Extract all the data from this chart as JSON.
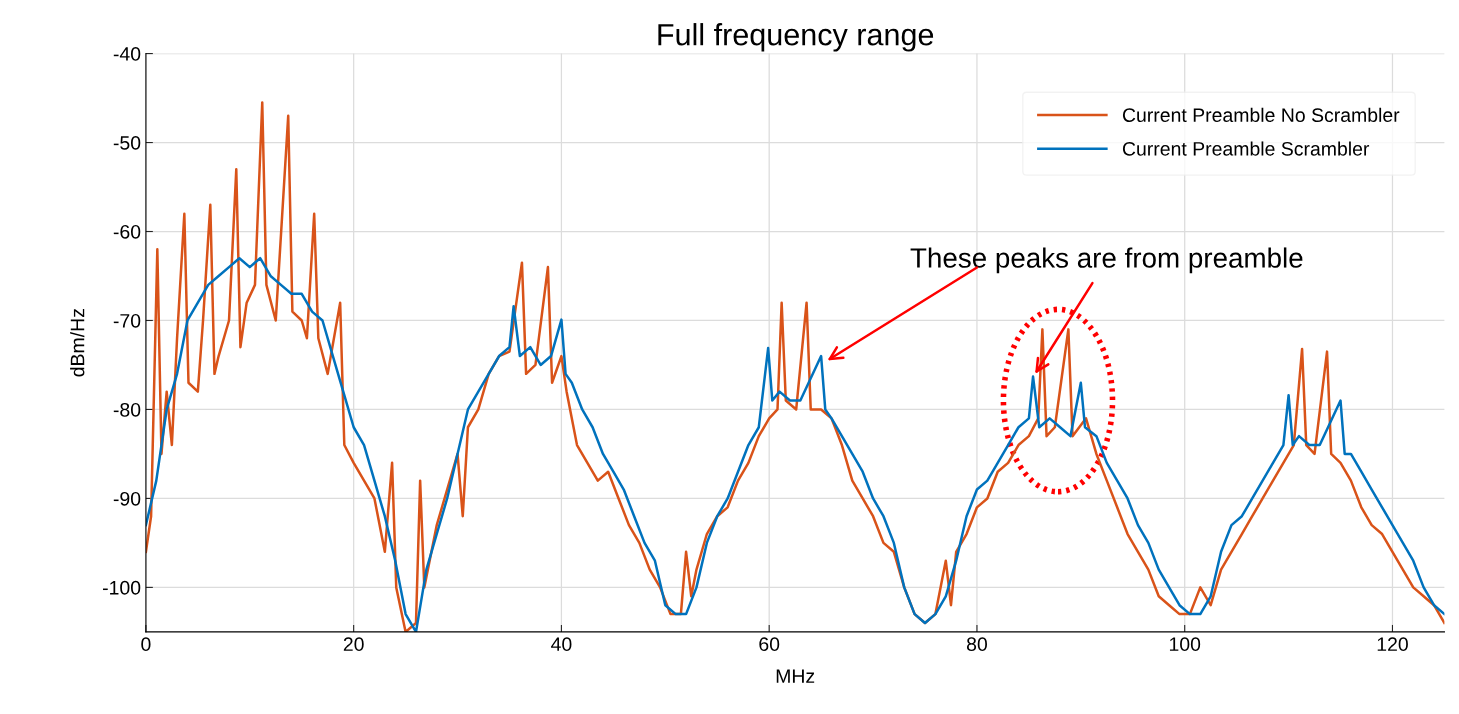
{
  "chart_data": {
    "type": "line",
    "title": "Full frequency range",
    "xlabel": "MHz",
    "ylabel": "dBm/Hz",
    "xlim": [
      0,
      125
    ],
    "ylim": [
      -105,
      -40
    ],
    "xticks": [
      0,
      20,
      40,
      60,
      80,
      100,
      120
    ],
    "yticks": [
      -100,
      -90,
      -80,
      -70,
      -60,
      -50,
      -40
    ],
    "grid": true,
    "legend": "top right",
    "line_style": "solid",
    "annotations": [
      {
        "text": "These peaks are from preamble",
        "x": 85.6,
        "y": -76
      }
    ],
    "series": [
      {
        "name": "Current Preamble No Scrambler",
        "color": "#d95319",
        "x": [
          0,
          0.5,
          1.1,
          1.5,
          2,
          2.5,
          3,
          3.7,
          4.1,
          5,
          5.5,
          6.2,
          6.6,
          7,
          8,
          8.7,
          9.1,
          9.7,
          10.5,
          11.2,
          11.6,
          12.5,
          13.7,
          14.1,
          15,
          15.5,
          16.2,
          16.6,
          17.5,
          18.7,
          19.1,
          20,
          21,
          22,
          23,
          23.7,
          24.1,
          25,
          26,
          26.4,
          26.8,
          28,
          29,
          30,
          30.5,
          31,
          32,
          33,
          34,
          35,
          36.2,
          36.6,
          37.5,
          38.7,
          39.1,
          40,
          40.5,
          41.5,
          42.5,
          43.5,
          44.5,
          45.5,
          46.5,
          47.5,
          48.5,
          49.5,
          50.5,
          51.5,
          52,
          52.5,
          53,
          54,
          55,
          56,
          57,
          58,
          59,
          60,
          60.8,
          61.2,
          61.6,
          62.6,
          63.6,
          64,
          65,
          66,
          67,
          68,
          69,
          70,
          71,
          72,
          73,
          74,
          75,
          76,
          77,
          77.5,
          78,
          79,
          80,
          81,
          82,
          83,
          84,
          85,
          85.9,
          86.3,
          86.7,
          87.5,
          88.8,
          89.2,
          90.5,
          91.5,
          92.5,
          93.5,
          94.5,
          95.5,
          96.5,
          97.5,
          98.5,
          99.5,
          100.5,
          101.5,
          102.5,
          103.5,
          104.5,
          105.5,
          106.5,
          107.5,
          108.5,
          109.5,
          110.5,
          111.3,
          111.7,
          112.5,
          113.7,
          114.1,
          115,
          116,
          117,
          118,
          119,
          120,
          121,
          122,
          123,
          124,
          125
        ],
        "values": [
          -96,
          -92,
          -62,
          -85,
          -78,
          -84,
          -72,
          -58,
          -77,
          -78,
          -70,
          -57,
          -76,
          -74,
          -70,
          -53,
          -73,
          -68,
          -66,
          -45.5,
          -66,
          -70,
          -47,
          -69,
          -70,
          -72,
          -58,
          -72,
          -76,
          -68,
          -84,
          -86,
          -88,
          -90,
          -96,
          -86,
          -100,
          -105,
          -104,
          -88,
          -100,
          -93,
          -89,
          -85,
          -92,
          -82,
          -80,
          -76,
          -74,
          -73.5,
          -63.5,
          -76,
          -75,
          -64,
          -77,
          -74,
          -78,
          -84,
          -86,
          -88,
          -87,
          -90,
          -93,
          -95,
          -98,
          -100,
          -103,
          -103,
          -96,
          -101,
          -98,
          -94,
          -92,
          -91,
          -88,
          -86,
          -83,
          -81,
          -80,
          -68,
          -79,
          -80,
          -68,
          -80,
          -80,
          -81,
          -84,
          -88,
          -90,
          -92,
          -95,
          -96,
          -100,
          -103,
          -104,
          -103,
          -97,
          -102,
          -96,
          -94,
          -91,
          -90,
          -87,
          -86,
          -84,
          -83,
          -81,
          -71,
          -83,
          -82,
          -71,
          -83,
          -81,
          -85,
          -88,
          -91,
          -94,
          -96,
          -98,
          -101,
          -102,
          -103,
          -103,
          -100,
          -102,
          -98,
          -96,
          -94,
          -92,
          -90,
          -88,
          -86,
          -84,
          -73.2,
          -84,
          -85,
          -73.5,
          -85,
          -86,
          -88,
          -91,
          -93,
          -94,
          -96,
          -98,
          -100,
          -101,
          -102,
          -104
        ]
      },
      {
        "name": "Current Preamble Scrambler",
        "color": "#0072bd",
        "x": [
          0,
          1,
          2,
          3,
          4,
          5,
          6,
          7,
          8,
          9,
          10,
          11,
          12,
          13,
          14,
          15,
          16,
          17,
          18,
          19,
          20,
          21,
          22,
          23,
          24,
          25,
          26,
          27,
          28,
          29,
          30,
          31,
          32,
          33,
          34,
          35,
          35.4,
          36,
          37,
          38,
          39,
          40,
          40.4,
          41,
          42,
          43,
          44,
          45,
          46,
          47,
          48,
          49,
          50,
          51,
          52,
          53,
          54,
          55,
          56,
          57,
          58,
          59,
          59.9,
          60.3,
          61,
          62,
          63,
          65,
          65.4,
          66,
          67,
          68,
          69,
          70,
          71,
          72,
          73,
          74,
          75,
          76,
          77,
          78,
          79,
          80,
          81,
          82,
          83,
          84,
          85,
          85.4,
          86,
          87,
          88,
          89,
          90,
          90.4,
          91.5,
          92.5,
          93.5,
          94.5,
          95.5,
          96.5,
          97.5,
          98.5,
          99.5,
          100.5,
          101.5,
          102.5,
          103.5,
          104.5,
          105.5,
          106.5,
          107.5,
          108.5,
          109.5,
          110,
          110.4,
          111,
          112,
          113,
          115,
          115.4,
          116,
          117,
          118,
          119,
          120,
          121,
          122,
          123,
          124,
          125
        ],
        "values": [
          -93,
          -88,
          -80,
          -76,
          -70,
          -68,
          -66,
          -65,
          -64,
          -63,
          -64,
          -63,
          -65,
          -66,
          -67,
          -67,
          -69,
          -70,
          -74,
          -78,
          -82,
          -84,
          -88,
          -92,
          -97,
          -103,
          -105,
          -98,
          -94,
          -90,
          -85,
          -80,
          -78,
          -76,
          -74,
          -73,
          -68.4,
          -74,
          -73,
          -75,
          -74,
          -69.9,
          -76,
          -77,
          -80,
          -82,
          -85,
          -87,
          -89,
          -92,
          -95,
          -97,
          -102,
          -103,
          -103,
          -100,
          -95,
          -92,
          -90,
          -87,
          -84,
          -82,
          -73.1,
          -79,
          -78,
          -79,
          -79,
          -74,
          -80,
          -81,
          -83,
          -85,
          -87,
          -90,
          -92,
          -95,
          -100,
          -103,
          -104,
          -103,
          -101,
          -97,
          -92,
          -89,
          -88,
          -86,
          -84,
          -82,
          -81,
          -76.3,
          -82,
          -81,
          -82,
          -83,
          -77,
          -82,
          -83,
          -86,
          -88,
          -90,
          -93,
          -95,
          -98,
          -100,
          -102,
          -103,
          -103,
          -101,
          -96,
          -93,
          -92,
          -90,
          -88,
          -86,
          -84,
          -78.4,
          -84,
          -83,
          -84,
          -84,
          -79,
          -85,
          -85,
          -87,
          -89,
          -91,
          -93,
          -95,
          -97,
          -100,
          -102,
          -103
        ]
      }
    ]
  }
}
